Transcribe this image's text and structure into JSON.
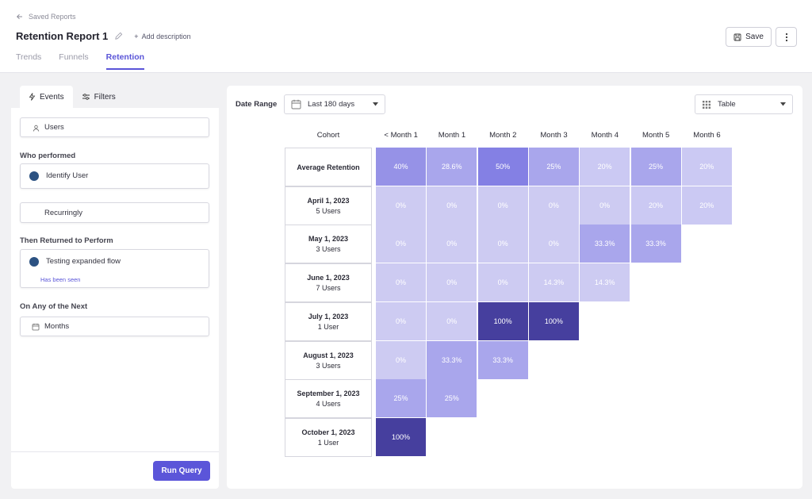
{
  "breadcrumb": {
    "label": "Saved Reports",
    "icon": "arrow-left-icon"
  },
  "report": {
    "title": "Retention Report 1",
    "add_description": "Add description"
  },
  "tabs": [
    {
      "label": "Trends",
      "active": false
    },
    {
      "label": "Funnels",
      "active": false
    },
    {
      "label": "Retention",
      "active": true
    }
  ],
  "toolbar": {
    "save_label": "Save"
  },
  "left": {
    "tabs": [
      {
        "label": "Events",
        "icon": "bolt-icon"
      },
      {
        "label": "Filters",
        "icon": "sliders-icon"
      }
    ],
    "users_field": "Users",
    "who_performed_label": "Who performed",
    "who_performed_event": "Identify User",
    "frequency": "Recurringly",
    "returned_label": "Then Returned to Perform",
    "returned_event": "Testing expanded flow",
    "returned_hint": "Has been seen",
    "next_label": "On Any of the Next",
    "period": "Months",
    "run_label": "Run Query"
  },
  "controls": {
    "date_range_label": "Date Range",
    "date_range_value": "Last 180 days",
    "view_value": "Table"
  },
  "colors": {
    "accent": "#5b55d9",
    "dot": "#2c5282"
  },
  "table": {
    "cohort_header": "Cohort",
    "columns": [
      "< Month 1",
      "Month 1",
      "Month 2",
      "Month 3",
      "Month 4",
      "Month 5",
      "Month 6"
    ],
    "rows": [
      {
        "name": "Average Retention",
        "users": "",
        "values": [
          "40%",
          "28.6%",
          "50%",
          "25%",
          "20%",
          "25%",
          "20%"
        ]
      },
      {
        "name": "April 1, 2023",
        "users": "5 Users",
        "values": [
          "0%",
          "0%",
          "0%",
          "0%",
          "0%",
          "20%",
          "20%"
        ]
      },
      {
        "name": "May 1, 2023",
        "users": "3 Users",
        "values": [
          "0%",
          "0%",
          "0%",
          "0%",
          "33.3%",
          "33.3%"
        ]
      },
      {
        "name": "June 1, 2023",
        "users": "7 Users",
        "values": [
          "0%",
          "0%",
          "0%",
          "14.3%",
          "14.3%"
        ]
      },
      {
        "name": "July 1, 2023",
        "users": "1 User",
        "values": [
          "0%",
          "0%",
          "100%",
          "100%"
        ]
      },
      {
        "name": "August 1, 2023",
        "users": "3 Users",
        "values": [
          "0%",
          "33.3%",
          "33.3%"
        ]
      },
      {
        "name": "September 1, 2023",
        "users": "4 Users",
        "values": [
          "25%",
          "25%"
        ]
      },
      {
        "name": "October 1, 2023",
        "users": "1 User",
        "values": [
          "100%"
        ]
      }
    ]
  }
}
